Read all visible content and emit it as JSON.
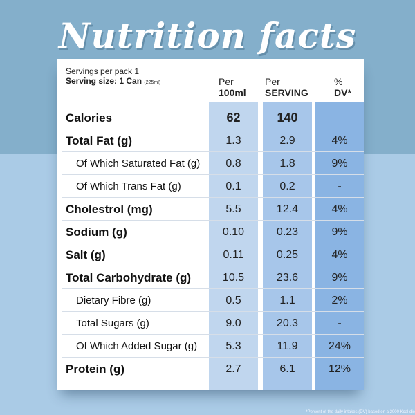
{
  "title": "Nutrition facts",
  "header": {
    "servings": "Servings per pack 1",
    "serving_size_label": "Serving size: 1 Can",
    "serving_size_note": "(225ml)",
    "col1_top": "Per",
    "col1_bottom": "100ml",
    "col2_top": "Per",
    "col2_bottom": "SERVING",
    "col3_top": "%",
    "col3_bottom": "DV*"
  },
  "rows": [
    {
      "label": "Calories",
      "per100": "62",
      "serving": "140",
      "dv": ""
    },
    {
      "label": "Total Fat (g)",
      "per100": "1.3",
      "serving": "2.9",
      "dv": "4%"
    },
    {
      "label": "Of Which Saturated Fat (g)",
      "per100": "0.8",
      "serving": "1.8",
      "dv": "9%"
    },
    {
      "label": "Of Which Trans Fat (g)",
      "per100": "0.1",
      "serving": "0.2",
      "dv": "-"
    },
    {
      "label": "Cholestrol (mg)",
      "per100": "5.5",
      "serving": "12.4",
      "dv": "4%"
    },
    {
      "label": "Sodium (g)",
      "per100": "0.10",
      "serving": "0.23",
      "dv": "9%"
    },
    {
      "label": "Salt (g)",
      "per100": "0.11",
      "serving": "0.25",
      "dv": "4%"
    },
    {
      "label": "Total Carbohydrate (g)",
      "per100": "10.5",
      "serving": "23.6",
      "dv": "9%"
    },
    {
      "label": "Dietary Fibre (g)",
      "per100": "0.5",
      "serving": "1.1",
      "dv": "2%"
    },
    {
      "label": "Total Sugars (g)",
      "per100": "9.0",
      "serving": "20.3",
      "dv": "-"
    },
    {
      "label": "Of Which Added Sugar (g)",
      "per100": "5.3",
      "serving": "11.9",
      "dv": "24%"
    },
    {
      "label": "Protein (g)",
      "per100": "2.7",
      "serving": "6.1",
      "dv": "12%"
    }
  ],
  "footnote": "*Percent of the daily intakes (DV) based on a 2000 Kcal die",
  "colors": {
    "bg_top": "#84afcb",
    "bg_bottom": "#aacbe6",
    "col1": "#c0d6ee",
    "col2": "#a7c6ea",
    "col3": "#8ab4e3"
  }
}
